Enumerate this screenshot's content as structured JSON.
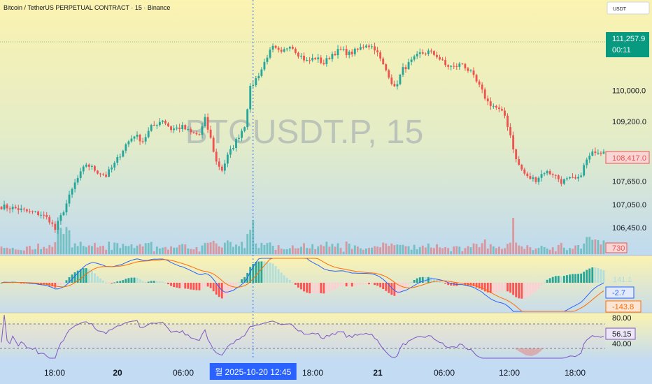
{
  "header": {
    "title": "Bitcoin / TetherUS PERPETUAL CONTRACT · 15 · Binance",
    "watermark": "BTCUSDT.P, 15",
    "currency_button": "USDT"
  },
  "colors": {
    "up": "#26a69a",
    "down": "#ef5350",
    "macd_line": "#2962ff",
    "signal_line": "#ff6d00",
    "rsi_line": "#7e57c2",
    "crosshair": "#2962ff",
    "bg_top": "#fbf3b0",
    "bg_bottom": "#bdd9f2"
  },
  "chart_data": {
    "type": "candlestick",
    "symbol": "BTCUSDT.P",
    "interval": "15",
    "price_axis": {
      "ticks": [
        "110,000.0",
        "109,200.0",
        "107,650.0",
        "107,050.0",
        "106,450.0"
      ],
      "tick_values": [
        110000,
        109200,
        107650,
        107050,
        106450
      ],
      "range": [
        106200,
        111800
      ]
    },
    "last_price": {
      "value": "111,257.9",
      "countdown": "00:11",
      "numeric": 111257.9
    },
    "current_price": {
      "value": "108,417.0",
      "numeric": 108417.0
    },
    "volume_label": "730",
    "time_axis": {
      "labels": [
        "18:00",
        "20",
        "06:00",
        "2025-10-20   12:45",
        "18:00",
        "21",
        "06:00",
        "12:00",
        "18:00"
      ],
      "crosshair_label": "월 2025-10-20   12:45"
    },
    "price_path": [
      [
        0,
        107000
      ],
      [
        5,
        106950
      ],
      [
        10,
        106850
      ],
      [
        14,
        106800
      ],
      [
        17,
        106650
      ],
      [
        19,
        106400
      ],
      [
        22,
        106900
      ],
      [
        26,
        107600
      ],
      [
        30,
        108100
      ],
      [
        34,
        107900
      ],
      [
        37,
        107800
      ],
      [
        40,
        108100
      ],
      [
        44,
        108600
      ],
      [
        47,
        108850
      ],
      [
        50,
        108700
      ],
      [
        53,
        109050
      ],
      [
        57,
        109250
      ],
      [
        60,
        109000
      ],
      [
        64,
        109050
      ],
      [
        67,
        108900
      ],
      [
        70,
        108850
      ],
      [
        72,
        109250
      ],
      [
        74,
        108750
      ],
      [
        76,
        108150
      ],
      [
        78,
        107950
      ],
      [
        80,
        108300
      ],
      [
        83,
        108700
      ],
      [
        86,
        109100
      ],
      [
        88,
        110050
      ],
      [
        90,
        110300
      ],
      [
        92,
        110550
      ],
      [
        94,
        110900
      ],
      [
        96,
        111100
      ],
      [
        99,
        110950
      ],
      [
        102,
        111200
      ],
      [
        105,
        110950
      ],
      [
        108,
        110750
      ],
      [
        111,
        110850
      ],
      [
        114,
        110700
      ],
      [
        117,
        110950
      ],
      [
        120,
        111050
      ],
      [
        123,
        110950
      ],
      [
        126,
        111050
      ],
      [
        129,
        111200
      ],
      [
        132,
        111100
      ],
      [
        135,
        110650
      ],
      [
        137,
        110400
      ],
      [
        139,
        110050
      ],
      [
        142,
        110550
      ],
      [
        145,
        110750
      ],
      [
        148,
        110950
      ],
      [
        151,
        111000
      ],
      [
        154,
        110900
      ],
      [
        157,
        110650
      ],
      [
        160,
        110600
      ],
      [
        163,
        110700
      ],
      [
        166,
        110450
      ],
      [
        169,
        110100
      ],
      [
        172,
        109700
      ],
      [
        175,
        109550
      ],
      [
        178,
        109350
      ],
      [
        180,
        108850
      ],
      [
        182,
        108200
      ],
      [
        184,
        107950
      ],
      [
        186,
        107750
      ],
      [
        189,
        107700
      ],
      [
        192,
        107900
      ],
      [
        195,
        107850
      ],
      [
        198,
        107650
      ],
      [
        201,
        107700
      ],
      [
        204,
        107700
      ],
      [
        207,
        108200
      ],
      [
        210,
        108450
      ],
      [
        213,
        108417
      ]
    ],
    "macd": {
      "values": [
        "141.1",
        "-2.7",
        "-143.8"
      ]
    },
    "rsi": {
      "levels": [
        "80.00",
        "40.00"
      ],
      "value": "56.15"
    },
    "crosshair_bar": 89,
    "bar_count": 214
  }
}
